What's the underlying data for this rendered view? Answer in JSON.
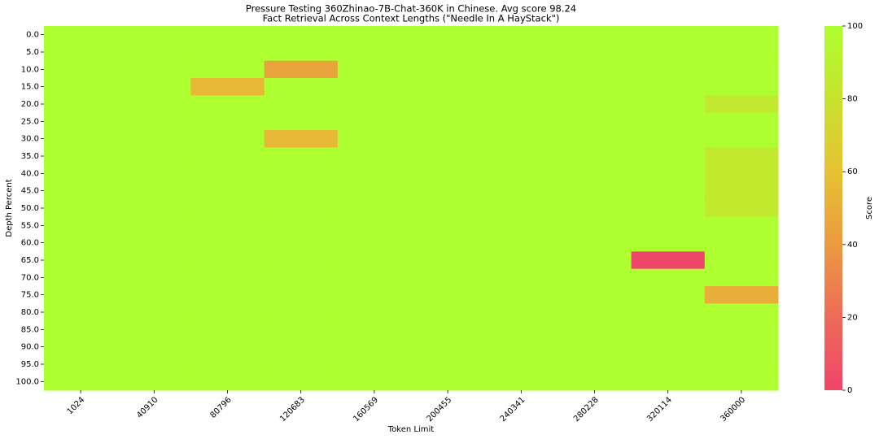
{
  "chart_data": {
    "type": "heatmap",
    "title": "Pressure Testing 360Zhinao-7B-Chat-360K in Chinese. Avg score 98.24",
    "subtitle": "Fact Retrieval Across Context Lengths (\"Needle In A HayStack\")",
    "xlabel": "Token Limit",
    "ylabel": "Depth Percent",
    "colorbar_label": "Score",
    "x_categories": [
      "1024",
      "40910",
      "80796",
      "120683",
      "160569",
      "200455",
      "240341",
      "280228",
      "320114",
      "360000"
    ],
    "y_categories": [
      "0.0",
      "5.0",
      "10.0",
      "15.0",
      "20.0",
      "25.0",
      "30.0",
      "35.0",
      "40.0",
      "45.0",
      "50.0",
      "55.0",
      "60.0",
      "65.0",
      "70.0",
      "75.0",
      "80.0",
      "85.0",
      "90.0",
      "95.0",
      "100.0"
    ],
    "values": [
      [
        100,
        100,
        100,
        100,
        100,
        100,
        100,
        100,
        100,
        100
      ],
      [
        100,
        100,
        100,
        100,
        100,
        100,
        100,
        100,
        100,
        100
      ],
      [
        100,
        100,
        100,
        45,
        100,
        100,
        100,
        100,
        100,
        100
      ],
      [
        100,
        100,
        55,
        100,
        100,
        100,
        100,
        100,
        100,
        100
      ],
      [
        100,
        100,
        100,
        100,
        100,
        100,
        100,
        100,
        100,
        85
      ],
      [
        100,
        100,
        100,
        100,
        100,
        100,
        100,
        100,
        100,
        100
      ],
      [
        100,
        100,
        100,
        55,
        100,
        100,
        100,
        100,
        100,
        100
      ],
      [
        100,
        100,
        100,
        100,
        100,
        100,
        100,
        100,
        100,
        85
      ],
      [
        100,
        100,
        100,
        100,
        100,
        100,
        100,
        100,
        100,
        85
      ],
      [
        100,
        100,
        100,
        100,
        100,
        100,
        100,
        100,
        100,
        85
      ],
      [
        100,
        100,
        100,
        100,
        100,
        100,
        100,
        100,
        100,
        85
      ],
      [
        100,
        100,
        100,
        100,
        100,
        100,
        100,
        100,
        100,
        100
      ],
      [
        100,
        100,
        100,
        100,
        100,
        100,
        100,
        100,
        100,
        100
      ],
      [
        100,
        100,
        100,
        100,
        100,
        100,
        100,
        100,
        0,
        100
      ],
      [
        100,
        100,
        100,
        100,
        100,
        100,
        100,
        100,
        100,
        100
      ],
      [
        100,
        100,
        100,
        100,
        100,
        100,
        100,
        100,
        100,
        50
      ],
      [
        100,
        100,
        100,
        100,
        100,
        100,
        100,
        100,
        100,
        100
      ],
      [
        100,
        100,
        100,
        100,
        100,
        100,
        100,
        100,
        100,
        100
      ],
      [
        100,
        100,
        100,
        100,
        100,
        100,
        100,
        100,
        100,
        100
      ],
      [
        100,
        100,
        100,
        100,
        100,
        100,
        100,
        100,
        100,
        100
      ],
      [
        100,
        100,
        100,
        100,
        100,
        100,
        100,
        100,
        100,
        100
      ]
    ],
    "clim": [
      0,
      100
    ],
    "cticks": [
      0,
      20,
      40,
      60,
      80,
      100
    ],
    "colormap": [
      {
        "value": 0,
        "color": "#f0456a"
      },
      {
        "value": 20,
        "color": "#ee6a58"
      },
      {
        "value": 40,
        "color": "#eb9a40"
      },
      {
        "value": 60,
        "color": "#e6c232"
      },
      {
        "value": 80,
        "color": "#c8e22e"
      },
      {
        "value": 100,
        "color": "#adff2f"
      }
    ]
  }
}
